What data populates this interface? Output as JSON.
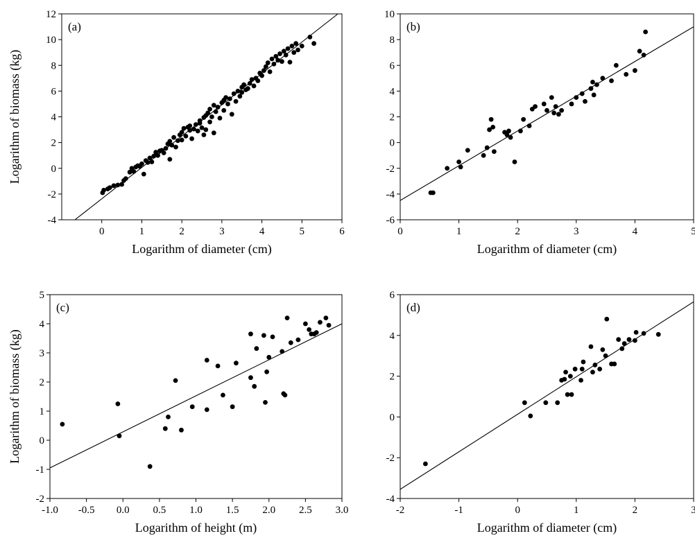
{
  "chart_data": [
    {
      "type": "scatter",
      "panel_label": "(a)",
      "xlabel": "Logarithm of diameter (cm)",
      "ylabel": "Logarithm of biomass (kg)",
      "xlim": [
        -1,
        6
      ],
      "ylim": [
        -4,
        12
      ],
      "xticks": [
        "0",
        "1",
        "2",
        "3",
        "4",
        "5",
        "6"
      ],
      "yticks": [
        "-4",
        "-2",
        "0",
        "2",
        "4",
        "6",
        "8",
        "10",
        "12"
      ],
      "x_tick_values": [
        0,
        1,
        2,
        3,
        4,
        5,
        6
      ],
      "y_tick_values": [
        -4,
        -2,
        0,
        2,
        4,
        6,
        8,
        10,
        12
      ],
      "fit_line": [
        [
          -0.67,
          -4.0
        ],
        [
          5.9,
          12.0
        ]
      ],
      "points": [
        [
          0.02,
          -1.9
        ],
        [
          0.05,
          -1.7
        ],
        [
          0.15,
          -1.6
        ],
        [
          0.2,
          -1.5
        ],
        [
          0.3,
          -1.35
        ],
        [
          0.4,
          -1.3
        ],
        [
          0.5,
          -1.25
        ],
        [
          0.55,
          -0.95
        ],
        [
          0.6,
          -0.8
        ],
        [
          0.7,
          -0.3
        ],
        [
          0.75,
          0.0
        ],
        [
          0.8,
          -0.25
        ],
        [
          0.85,
          0.1
        ],
        [
          0.9,
          0.2
        ],
        [
          0.95,
          0.15
        ],
        [
          1.0,
          0.35
        ],
        [
          1.05,
          -0.45
        ],
        [
          1.1,
          0.6
        ],
        [
          1.15,
          0.45
        ],
        [
          1.2,
          0.8
        ],
        [
          1.25,
          0.5
        ],
        [
          1.3,
          0.95
        ],
        [
          1.35,
          1.25
        ],
        [
          1.4,
          1.0
        ],
        [
          1.45,
          1.35
        ],
        [
          1.5,
          1.4
        ],
        [
          1.55,
          1.2
        ],
        [
          1.6,
          1.55
        ],
        [
          1.65,
          1.9
        ],
        [
          1.7,
          0.7
        ],
        [
          1.7,
          2.1
        ],
        [
          1.75,
          1.8
        ],
        [
          1.8,
          2.4
        ],
        [
          1.85,
          1.65
        ],
        [
          1.9,
          2.15
        ],
        [
          1.95,
          2.6
        ],
        [
          2.0,
          2.2
        ],
        [
          2.0,
          2.8
        ],
        [
          2.05,
          3.1
        ],
        [
          2.1,
          2.5
        ],
        [
          2.15,
          3.2
        ],
        [
          2.2,
          2.95
        ],
        [
          2.2,
          3.3
        ],
        [
          2.25,
          2.3
        ],
        [
          2.3,
          3.05
        ],
        [
          2.35,
          3.4
        ],
        [
          2.4,
          2.9
        ],
        [
          2.45,
          3.5
        ],
        [
          2.45,
          3.7
        ],
        [
          2.5,
          3.15
        ],
        [
          2.55,
          2.6
        ],
        [
          2.55,
          3.95
        ],
        [
          2.6,
          4.1
        ],
        [
          2.6,
          3.0
        ],
        [
          2.65,
          4.3
        ],
        [
          2.7,
          3.6
        ],
        [
          2.7,
          4.6
        ],
        [
          2.75,
          4.0
        ],
        [
          2.8,
          4.9
        ],
        [
          2.8,
          2.75
        ],
        [
          2.85,
          4.4
        ],
        [
          2.9,
          4.75
        ],
        [
          2.95,
          3.9
        ],
        [
          3.0,
          5.1
        ],
        [
          3.05,
          4.5
        ],
        [
          3.05,
          5.3
        ],
        [
          3.1,
          5.5
        ],
        [
          3.15,
          5.0
        ],
        [
          3.2,
          5.4
        ],
        [
          3.25,
          4.2
        ],
        [
          3.3,
          5.8
        ],
        [
          3.35,
          5.2
        ],
        [
          3.4,
          6.0
        ],
        [
          3.45,
          5.6
        ],
        [
          3.5,
          6.3
        ],
        [
          3.5,
          5.9
        ],
        [
          3.55,
          6.5
        ],
        [
          3.6,
          6.1
        ],
        [
          3.65,
          6.2
        ],
        [
          3.7,
          6.6
        ],
        [
          3.75,
          6.9
        ],
        [
          3.8,
          6.4
        ],
        [
          3.85,
          7.0
        ],
        [
          3.9,
          6.8
        ],
        [
          3.95,
          7.4
        ],
        [
          4.0,
          7.2
        ],
        [
          4.05,
          7.6
        ],
        [
          4.1,
          7.9
        ],
        [
          4.15,
          8.2
        ],
        [
          4.2,
          7.5
        ],
        [
          4.25,
          8.5
        ],
        [
          4.3,
          8.1
        ],
        [
          4.35,
          8.7
        ],
        [
          4.4,
          8.4
        ],
        [
          4.45,
          8.9
        ],
        [
          4.5,
          8.3
        ],
        [
          4.55,
          9.1
        ],
        [
          4.6,
          8.8
        ],
        [
          4.65,
          9.3
        ],
        [
          4.7,
          8.25
        ],
        [
          4.75,
          9.5
        ],
        [
          4.8,
          9.0
        ],
        [
          4.85,
          9.7
        ],
        [
          4.9,
          9.2
        ],
        [
          5.0,
          9.5
        ],
        [
          5.2,
          10.2
        ],
        [
          5.3,
          9.7
        ]
      ]
    },
    {
      "type": "scatter",
      "panel_label": "(b)",
      "xlabel": "Logarithm of diameter (cm)",
      "ylabel": "",
      "xlim": [
        0,
        5
      ],
      "ylim": [
        -6,
        10
      ],
      "xticks": [
        "0",
        "1",
        "2",
        "3",
        "4",
        "5"
      ],
      "yticks": [
        "-6",
        "-4",
        "-2",
        "0",
        "2",
        "4",
        "6",
        "8",
        "10"
      ],
      "x_tick_values": [
        0,
        1,
        2,
        3,
        4,
        5
      ],
      "y_tick_values": [
        -6,
        -4,
        -2,
        0,
        2,
        4,
        6,
        8,
        10
      ],
      "fit_line": [
        [
          0.0,
          -4.5
        ],
        [
          5.0,
          9.0
        ]
      ],
      "points": [
        [
          0.52,
          -3.9
        ],
        [
          0.56,
          -3.9
        ],
        [
          0.8,
          -2.0
        ],
        [
          1.0,
          -1.5
        ],
        [
          1.03,
          -1.9
        ],
        [
          1.15,
          -0.6
        ],
        [
          1.42,
          -1.0
        ],
        [
          1.48,
          -0.4
        ],
        [
          1.52,
          1.0
        ],
        [
          1.55,
          1.8
        ],
        [
          1.58,
          1.2
        ],
        [
          1.6,
          -0.7
        ],
        [
          1.78,
          0.8
        ],
        [
          1.82,
          0.6
        ],
        [
          1.85,
          0.9
        ],
        [
          1.88,
          0.4
        ],
        [
          1.95,
          -1.5
        ],
        [
          2.05,
          0.9
        ],
        [
          2.1,
          1.8
        ],
        [
          2.2,
          1.3
        ],
        [
          2.25,
          2.6
        ],
        [
          2.3,
          2.8
        ],
        [
          2.45,
          3.0
        ],
        [
          2.5,
          2.5
        ],
        [
          2.58,
          3.5
        ],
        [
          2.62,
          2.3
        ],
        [
          2.65,
          2.8
        ],
        [
          2.7,
          2.2
        ],
        [
          2.75,
          2.5
        ],
        [
          2.92,
          3.0
        ],
        [
          3.0,
          3.5
        ],
        [
          3.1,
          3.8
        ],
        [
          3.15,
          3.2
        ],
        [
          3.25,
          4.2
        ],
        [
          3.28,
          4.7
        ],
        [
          3.3,
          3.7
        ],
        [
          3.35,
          4.5
        ],
        [
          3.45,
          5.0
        ],
        [
          3.6,
          4.8
        ],
        [
          3.68,
          6.0
        ],
        [
          3.85,
          5.3
        ],
        [
          4.0,
          5.6
        ],
        [
          4.08,
          7.1
        ],
        [
          4.15,
          6.8
        ],
        [
          4.18,
          8.6
        ]
      ]
    },
    {
      "type": "scatter",
      "panel_label": "(c)",
      "xlabel": "Logarithm of height (m)",
      "ylabel": "Logarithm of biomass (kg)",
      "xlim": [
        -1.0,
        3.0
      ],
      "ylim": [
        -2,
        5
      ],
      "xticks": [
        "-1.0",
        "-0.5",
        "0.0",
        "0.5",
        "1.0",
        "1.5",
        "2.0",
        "2.5",
        "3.0"
      ],
      "yticks": [
        "-2",
        "-1",
        "0",
        "1",
        "2",
        "3",
        "4",
        "5"
      ],
      "x_tick_values": [
        -1.0,
        -0.5,
        0.0,
        0.5,
        1.0,
        1.5,
        2.0,
        2.5,
        3.0
      ],
      "y_tick_values": [
        -2,
        -1,
        0,
        1,
        2,
        3,
        4,
        5
      ],
      "fit_line": [
        [
          -1.0,
          -0.95
        ],
        [
          3.0,
          4.0
        ]
      ],
      "points": [
        [
          -0.83,
          0.55
        ],
        [
          -0.07,
          1.25
        ],
        [
          -0.05,
          0.15
        ],
        [
          0.37,
          -0.9
        ],
        [
          0.58,
          0.4
        ],
        [
          0.62,
          0.8
        ],
        [
          0.72,
          2.05
        ],
        [
          0.8,
          0.35
        ],
        [
          0.95,
          1.15
        ],
        [
          1.15,
          1.05
        ],
        [
          1.15,
          2.75
        ],
        [
          1.3,
          2.55
        ],
        [
          1.37,
          1.55
        ],
        [
          1.5,
          1.15
        ],
        [
          1.55,
          2.65
        ],
        [
          1.75,
          3.65
        ],
        [
          1.75,
          2.15
        ],
        [
          1.8,
          1.85
        ],
        [
          1.83,
          3.15
        ],
        [
          1.93,
          3.6
        ],
        [
          1.95,
          1.3
        ],
        [
          1.97,
          2.35
        ],
        [
          2.0,
          2.85
        ],
        [
          2.05,
          3.55
        ],
        [
          2.18,
          3.05
        ],
        [
          2.2,
          1.6
        ],
        [
          2.22,
          1.55
        ],
        [
          2.25,
          4.2
        ],
        [
          2.3,
          3.35
        ],
        [
          2.4,
          3.45
        ],
        [
          2.5,
          4.0
        ],
        [
          2.55,
          3.8
        ],
        [
          2.58,
          3.65
        ],
        [
          2.62,
          3.65
        ],
        [
          2.65,
          3.7
        ],
        [
          2.7,
          4.05
        ],
        [
          2.78,
          4.2
        ],
        [
          2.82,
          3.95
        ]
      ]
    },
    {
      "type": "scatter",
      "panel_label": "(d)",
      "xlabel": "Logarithm of diameter (cm)",
      "ylabel": "",
      "xlim": [
        -2,
        3
      ],
      "ylim": [
        -4,
        6
      ],
      "xticks": [
        "-2",
        "-1",
        "0",
        "1",
        "2",
        "3"
      ],
      "yticks": [
        "-4",
        "-2",
        "0",
        "2",
        "4",
        "6"
      ],
      "x_tick_values": [
        -2,
        -1,
        0,
        1,
        2,
        3
      ],
      "y_tick_values": [
        -4,
        -2,
        0,
        2,
        4,
        6
      ],
      "fit_line": [
        [
          -2.0,
          -3.55
        ],
        [
          3.0,
          5.65
        ]
      ],
      "points": [
        [
          -1.57,
          -2.3
        ],
        [
          0.12,
          0.7
        ],
        [
          0.22,
          0.05
        ],
        [
          0.48,
          0.7
        ],
        [
          0.68,
          0.7
        ],
        [
          0.75,
          1.8
        ],
        [
          0.8,
          1.85
        ],
        [
          0.82,
          2.2
        ],
        [
          0.85,
          1.1
        ],
        [
          0.9,
          2.0
        ],
        [
          0.92,
          1.1
        ],
        [
          0.98,
          2.35
        ],
        [
          1.08,
          1.8
        ],
        [
          1.1,
          2.35
        ],
        [
          1.12,
          2.7
        ],
        [
          1.25,
          3.45
        ],
        [
          1.28,
          2.2
        ],
        [
          1.32,
          2.55
        ],
        [
          1.4,
          2.35
        ],
        [
          1.45,
          3.3
        ],
        [
          1.5,
          3.0
        ],
        [
          1.52,
          4.8
        ],
        [
          1.6,
          2.6
        ],
        [
          1.65,
          2.6
        ],
        [
          1.72,
          3.8
        ],
        [
          1.78,
          3.35
        ],
        [
          1.82,
          3.6
        ],
        [
          1.9,
          3.8
        ],
        [
          2.0,
          3.75
        ],
        [
          2.02,
          4.15
        ],
        [
          2.15,
          4.1
        ],
        [
          2.4,
          4.05
        ]
      ]
    }
  ]
}
